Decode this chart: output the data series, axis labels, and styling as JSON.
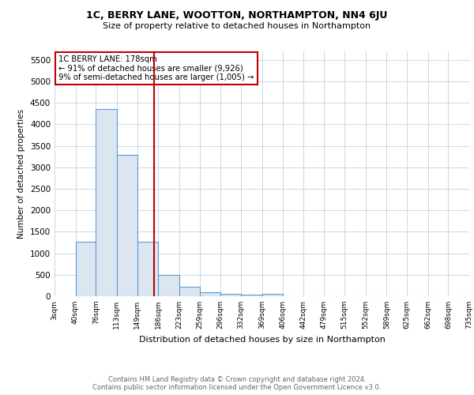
{
  "title": "1C, BERRY LANE, WOOTTON, NORTHAMPTON, NN4 6JU",
  "subtitle": "Size of property relative to detached houses in Northampton",
  "xlabel": "Distribution of detached houses by size in Northampton",
  "ylabel": "Number of detached properties",
  "footer_line1": "Contains HM Land Registry data © Crown copyright and database right 2024.",
  "footer_line2": "Contains public sector information licensed under the Open Government Licence v3.0.",
  "annotation_title": "1C BERRY LANE: 178sqm",
  "annotation_line1": "← 91% of detached houses are smaller (9,926)",
  "annotation_line2": "9% of semi-detached houses are larger (1,005) →",
  "property_size": 178,
  "bar_edge_color": "#5b9bd5",
  "bar_fill_color": "#dce6f1",
  "vline_color": "#c00000",
  "annotation_box_edgecolor": "#c00000",
  "background_color": "#ffffff",
  "grid_color": "#c8d8e8",
  "bin_edges": [
    3,
    40,
    76,
    113,
    149,
    186,
    223,
    259,
    296,
    332,
    369,
    406,
    442,
    479,
    515,
    552,
    589,
    625,
    662,
    698,
    735
  ],
  "bar_heights": [
    0,
    1260,
    4360,
    3300,
    1270,
    490,
    215,
    90,
    60,
    45,
    55,
    0,
    0,
    0,
    0,
    0,
    0,
    0,
    0,
    0
  ],
  "ylim": [
    0,
    5700
  ],
  "yticks": [
    0,
    500,
    1000,
    1500,
    2000,
    2500,
    3000,
    3500,
    4000,
    4500,
    5000,
    5500
  ]
}
